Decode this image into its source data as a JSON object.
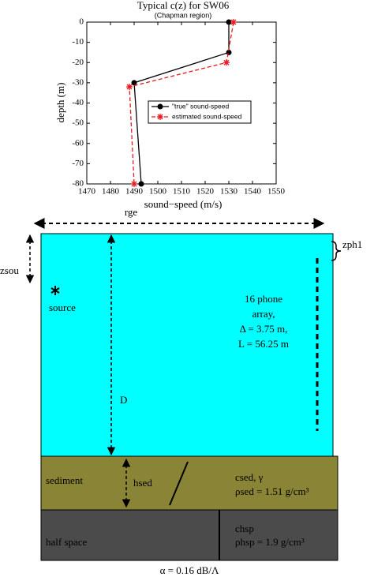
{
  "chart_data": {
    "type": "line",
    "title": "Typical c(z) for SW06",
    "subtitle": "(Chapman region)",
    "x_label": "sound−speed (m/s)",
    "y_label": "depth (m)",
    "xlim": [
      1470,
      1550
    ],
    "xticks": [
      1470,
      1480,
      1490,
      1500,
      1510,
      1520,
      1530,
      1540,
      1550
    ],
    "ylim": [
      -80,
      0
    ],
    "yticks": [
      0,
      -10,
      -20,
      -30,
      -40,
      -50,
      -60,
      -70,
      -80
    ],
    "legend": "upper-right",
    "series": [
      {
        "name": "\"true\" sound-speed",
        "color": "#000000",
        "marker": "circle",
        "dashed": false,
        "x": [
          1530,
          1530,
          1490,
          1493
        ],
        "values": [
          0,
          -15,
          -30,
          -80
        ]
      },
      {
        "name": "estimated sound-speed",
        "color": "#e8191f",
        "marker": "asterisk",
        "dashed": true,
        "x": [
          1532,
          1529,
          1488,
          1490
        ],
        "values": [
          0,
          -20,
          -32,
          -80
        ]
      }
    ]
  },
  "diagram": {
    "range": "rge",
    "source_depth": "zsou",
    "phone_depth": "zph1",
    "source": "source",
    "water_depth": "D",
    "array": [
      "16 phone",
      "array,",
      "Δ = 3.75 m,",
      "L = 56.25 m"
    ],
    "sediment": "sediment",
    "sediment_thickness": "hsed",
    "sediment_params": [
      "csed, γ",
      "ρsed = 1.51 g/cm³"
    ],
    "half_space": "half space",
    "half_space_params": [
      "chsp",
      "ρhsp = 1.9 g/cm³"
    ],
    "attenuation": "α = 0.16 dB/Λ"
  }
}
